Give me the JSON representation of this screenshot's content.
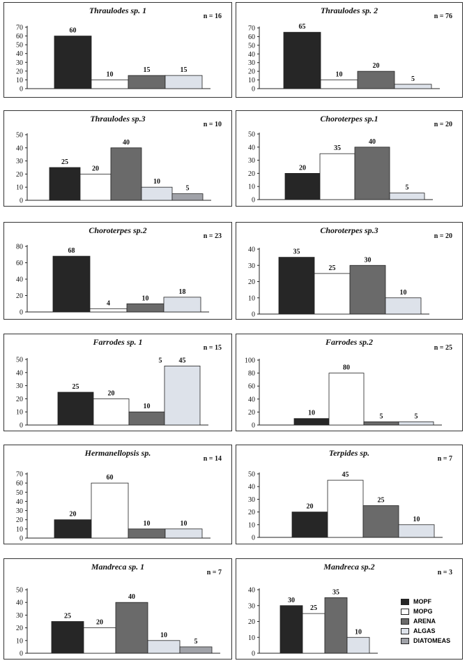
{
  "legend": [
    {
      "label": "MOPF",
      "color": "#262626"
    },
    {
      "label": "MOPG",
      "color": "#ffffff"
    },
    {
      "label": "ARENA",
      "color": "#6a6a6a"
    },
    {
      "label": "ALGAS",
      "color": "#dde2ea"
    },
    {
      "label": "DIATOMEAS",
      "color": "#a0a2a8"
    }
  ],
  "chart_data": [
    {
      "type": "bar",
      "title": "Thraulodes sp. 1",
      "n": "n = 16",
      "ylim": [
        0,
        70
      ],
      "yticks": [
        0,
        10,
        20,
        30,
        40,
        50,
        60,
        70
      ],
      "categories": [
        "MOPF",
        "MOPG",
        "ARENA",
        "ALGAS"
      ],
      "values": [
        60,
        10,
        15,
        15
      ],
      "labels": [
        "60",
        "10",
        "15",
        "15"
      ]
    },
    {
      "type": "bar",
      "title": "Thraulodes sp. 2",
      "n": "n = 76",
      "ylim": [
        0,
        70
      ],
      "yticks": [
        0,
        10,
        20,
        30,
        40,
        50,
        60,
        70
      ],
      "categories": [
        "MOPF",
        "MOPG",
        "ARENA",
        "ALGAS"
      ],
      "values": [
        65,
        10,
        20,
        5
      ],
      "labels": [
        "65",
        "10",
        "20",
        "5"
      ]
    },
    {
      "type": "bar",
      "title": "Thraulodes sp.3",
      "n": "n = 10",
      "ylim": [
        0,
        50
      ],
      "yticks": [
        0,
        10,
        20,
        30,
        40,
        50
      ],
      "categories": [
        "MOPF",
        "MOPG",
        "ARENA",
        "ALGAS",
        "DIATOMEAS"
      ],
      "values": [
        25,
        20,
        40,
        10,
        5
      ],
      "labels": [
        "25",
        "20",
        "40",
        "10",
        "5"
      ]
    },
    {
      "type": "bar",
      "title": "Choroterpes sp.1",
      "n": "n = 20",
      "ylim": [
        0,
        50
      ],
      "yticks": [
        0,
        10,
        20,
        30,
        40,
        50
      ],
      "categories": [
        "MOPF",
        "MOPG",
        "ARENA",
        "ALGAS"
      ],
      "values": [
        20,
        35,
        40,
        5
      ],
      "labels": [
        "20",
        "35",
        "40",
        "5"
      ]
    },
    {
      "type": "bar",
      "title": "Choroterpes sp.2",
      "n": "n = 23",
      "ylim": [
        0,
        80
      ],
      "yticks": [
        0,
        20,
        40,
        60,
        80
      ],
      "categories": [
        "MOPF",
        "MOPG",
        "ARENA",
        "ALGAS"
      ],
      "values": [
        68,
        4,
        10,
        18
      ],
      "labels": [
        "68",
        "4",
        "10",
        "18"
      ]
    },
    {
      "type": "bar",
      "title": "Choroterpes sp.3",
      "n": "n = 20",
      "ylim": [
        0,
        40
      ],
      "yticks": [
        0,
        10,
        20,
        30,
        40
      ],
      "categories": [
        "MOPF",
        "MOPG",
        "ARENA",
        "ALGAS"
      ],
      "values": [
        35,
        25,
        30,
        10
      ],
      "labels": [
        "35",
        "25",
        "30",
        "10"
      ]
    },
    {
      "type": "bar",
      "title": "Farrodes sp. 1",
      "n": "n = 15",
      "ylim": [
        0,
        50
      ],
      "yticks": [
        0,
        10,
        20,
        30,
        40,
        50
      ],
      "categories": [
        "MOPF",
        "MOPG",
        "ARENA",
        "ALGAS"
      ],
      "values": [
        25,
        20,
        10,
        45
      ],
      "labels": [
        "25",
        "20",
        "10",
        "45"
      ],
      "extra_label": {
        "text": "5",
        "bar": 3
      }
    },
    {
      "type": "bar",
      "title": "Farrodes sp.2",
      "n": "n = 25",
      "ylim": [
        0,
        100
      ],
      "yticks": [
        0,
        20,
        40,
        60,
        80,
        100
      ],
      "categories": [
        "MOPF",
        "MOPG",
        "ARENA",
        "ALGAS"
      ],
      "values": [
        10,
        80,
        5,
        5
      ],
      "labels": [
        "10",
        "80",
        "5",
        "5"
      ]
    },
    {
      "type": "bar",
      "title": "Hermanellopsis sp.",
      "n": "n = 14",
      "ylim": [
        0,
        70
      ],
      "yticks": [
        0,
        10,
        20,
        30,
        40,
        50,
        60,
        70
      ],
      "categories": [
        "MOPF",
        "MOPG",
        "ARENA",
        "ALGAS"
      ],
      "values": [
        20,
        60,
        10,
        10
      ],
      "labels": [
        "20",
        "60",
        "10",
        "10"
      ]
    },
    {
      "type": "bar",
      "title": "Terpides sp.",
      "n": "n = 7",
      "ylim": [
        0,
        50
      ],
      "yticks": [
        0,
        10,
        20,
        30,
        40,
        50
      ],
      "categories": [
        "MOPF",
        "MOPG",
        "ARENA",
        "ALGAS"
      ],
      "values": [
        20,
        45,
        25,
        10
      ],
      "labels": [
        "20",
        "45",
        "25",
        "10"
      ]
    },
    {
      "type": "bar",
      "title": "Mandreca sp. 1",
      "n": "n = 7",
      "ylim": [
        0,
        50
      ],
      "yticks": [
        0,
        10,
        20,
        30,
        40,
        50
      ],
      "categories": [
        "MOPF",
        "MOPG",
        "ARENA",
        "ALGAS",
        "DIATOMEAS"
      ],
      "values": [
        25,
        20,
        40,
        10,
        5
      ],
      "labels": [
        "25",
        "20",
        "40",
        "10",
        "5"
      ]
    },
    {
      "type": "bar",
      "title": "Mandreca sp.2",
      "n": "n = 3",
      "ylim": [
        0,
        40
      ],
      "yticks": [
        0,
        10,
        20,
        30,
        40
      ],
      "categories": [
        "MOPF",
        "MOPG",
        "ARENA",
        "ALGAS"
      ],
      "values": [
        30,
        25,
        35,
        10
      ],
      "labels": [
        "30",
        "25",
        "35",
        "10"
      ]
    }
  ]
}
